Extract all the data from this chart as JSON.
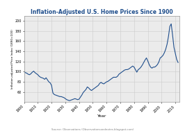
{
  "title": "Inflation-Adjusted U.S. Home Prices Since 1900",
  "xlabel": "Year",
  "ylabel": "Inflation-adjusted Price Index (1890=100)",
  "source": "Source: Observations (Observationsandnotes.blogspot.com)",
  "line_color": "#1F4E8C",
  "background_color": "#FFFFFF",
  "grid_color": "#CCCCCC",
  "xlim": [
    1900,
    2013
  ],
  "ylim": [
    40,
    210
  ],
  "yticks": [
    60,
    80,
    100,
    120,
    140,
    160,
    180,
    200
  ],
  "xticks": [
    1900,
    1910,
    1920,
    1930,
    1940,
    1950,
    1960,
    1970,
    1980,
    1990,
    2000,
    2010
  ],
  "years": [
    1900,
    1901,
    1902,
    1903,
    1904,
    1905,
    1906,
    1907,
    1908,
    1909,
    1910,
    1911,
    1912,
    1913,
    1914,
    1915,
    1916,
    1917,
    1918,
    1919,
    1920,
    1921,
    1922,
    1923,
    1924,
    1925,
    1926,
    1927,
    1928,
    1929,
    1930,
    1931,
    1932,
    1933,
    1934,
    1935,
    1936,
    1937,
    1938,
    1939,
    1940,
    1941,
    1942,
    1943,
    1944,
    1945,
    1946,
    1947,
    1948,
    1949,
    1950,
    1951,
    1952,
    1953,
    1954,
    1955,
    1956,
    1957,
    1958,
    1959,
    1960,
    1961,
    1962,
    1963,
    1964,
    1965,
    1966,
    1967,
    1968,
    1969,
    1970,
    1971,
    1972,
    1973,
    1974,
    1975,
    1976,
    1977,
    1978,
    1979,
    1980,
    1981,
    1982,
    1983,
    1984,
    1985,
    1986,
    1987,
    1988,
    1989,
    1990,
    1991,
    1992,
    1993,
    1994,
    1995,
    1996,
    1997,
    1998,
    1999,
    2000,
    2001,
    2002,
    2003,
    2004,
    2005,
    2006,
    2007,
    2008,
    2009,
    2010,
    2011,
    2012
  ],
  "values": [
    100,
    98,
    97,
    95,
    94,
    96,
    99,
    101,
    98,
    96,
    94,
    91,
    89,
    88,
    87,
    85,
    88,
    84,
    80,
    78,
    73,
    58,
    55,
    54,
    53,
    52,
    51,
    51,
    50,
    49,
    47,
    45,
    44,
    43,
    44,
    45,
    46,
    47,
    46,
    45,
    46,
    50,
    54,
    59,
    62,
    65,
    70,
    68,
    65,
    63,
    65,
    67,
    69,
    71,
    73,
    77,
    79,
    77,
    76,
    78,
    80,
    81,
    83,
    85,
    87,
    89,
    89,
    89,
    91,
    95,
    97,
    99,
    101,
    103,
    104,
    104,
    105,
    107,
    109,
    111,
    109,
    104,
    99,
    104,
    106,
    109,
    113,
    118,
    123,
    127,
    121,
    114,
    109,
    107,
    109,
    109,
    111,
    114,
    119,
    127,
    129,
    132,
    137,
    144,
    154,
    169,
    189,
    194,
    172,
    148,
    136,
    124,
    118
  ]
}
